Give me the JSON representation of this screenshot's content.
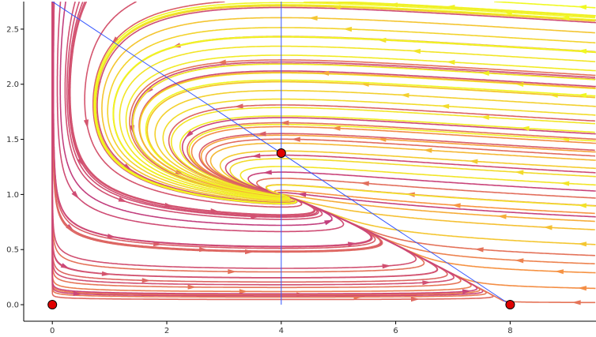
{
  "chart_data": {
    "type": "streamplot",
    "title": "",
    "xlabel": "",
    "ylabel": "",
    "xlim": [
      -0.5,
      9.5
    ],
    "ylim": [
      -0.15,
      2.75
    ],
    "x_ticks": [
      0,
      2,
      4,
      6,
      8
    ],
    "x_tick_labels": [
      "0",
      "2",
      "4",
      "6",
      "8"
    ],
    "y_ticks": [
      0.0,
      0.5,
      1.0,
      1.5,
      2.0,
      2.5
    ],
    "y_tick_labels": [
      "0.0",
      "0.5",
      "1.0",
      "1.5",
      "2.0",
      "2.5"
    ],
    "grid": false,
    "colormap": "plasma",
    "fixed_points": [
      {
        "x": 0,
        "y": 0
      },
      {
        "x": 4,
        "y": 1.375
      },
      {
        "x": 8,
        "y": 0
      }
    ],
    "fixed_point_color": "#e00000",
    "nullclines": [
      {
        "kind": "line",
        "points": [
          [
            0,
            2.75
          ],
          [
            8,
            0
          ]
        ]
      },
      {
        "kind": "vertical",
        "x": 4
      }
    ],
    "nullcline_color": "#3355ff",
    "field": {
      "a": 1.0,
      "K": 8.0,
      "b": 0.25,
      "c": 0.5,
      "d": 0.125
    },
    "seeds": [
      [
        0.2,
        0.35
      ],
      [
        0.9,
        0.28
      ],
      [
        1.6,
        0.22
      ],
      [
        2.4,
        0.16
      ],
      [
        3.3,
        0.12
      ],
      [
        4.3,
        0.09
      ],
      [
        5.3,
        0.07
      ],
      [
        6.3,
        0.05
      ],
      [
        0.3,
        0.7
      ],
      [
        1.0,
        0.62
      ],
      [
        1.8,
        0.55
      ],
      [
        2.6,
        0.5
      ],
      [
        3.4,
        0.48
      ],
      [
        0.4,
        1.0
      ],
      [
        1.2,
        0.95
      ],
      [
        2.0,
        0.9
      ],
      [
        2.8,
        0.85
      ],
      [
        3.5,
        0.8
      ],
      [
        0.5,
        1.3
      ],
      [
        1.3,
        1.25
      ],
      [
        2.2,
        1.2
      ],
      [
        0.6,
        1.65
      ],
      [
        1.4,
        1.6
      ],
      [
        2.4,
        1.55
      ],
      [
        0.8,
        2.0
      ],
      [
        1.7,
        1.95
      ],
      [
        1.1,
        2.4
      ],
      [
        2.2,
        2.35
      ],
      [
        3.0,
        2.2
      ],
      [
        3.3,
        1.8
      ],
      [
        0.4,
        0.1
      ],
      [
        3.1,
        0.3
      ],
      [
        4.6,
        2.6
      ],
      [
        5.2,
        2.5
      ],
      [
        5.8,
        2.4
      ],
      [
        6.4,
        2.3
      ],
      [
        7.0,
        2.2
      ],
      [
        7.6,
        2.1
      ],
      [
        8.2,
        2.0
      ],
      [
        8.8,
        1.9
      ],
      [
        4.8,
        2.1
      ],
      [
        5.5,
        2.0
      ],
      [
        6.2,
        1.9
      ],
      [
        6.9,
        1.8
      ],
      [
        7.6,
        1.7
      ],
      [
        8.3,
        1.6
      ],
      [
        9.0,
        1.5
      ],
      [
        5.0,
        1.6
      ],
      [
        5.8,
        1.5
      ],
      [
        6.6,
        1.4
      ],
      [
        7.4,
        1.3
      ],
      [
        8.2,
        1.2
      ],
      [
        9.0,
        1.1
      ],
      [
        5.5,
        1.1
      ],
      [
        6.3,
        1.0
      ],
      [
        7.1,
        0.9
      ],
      [
        7.9,
        0.8
      ],
      [
        8.7,
        0.7
      ],
      [
        9.3,
        0.55
      ],
      [
        7.5,
        0.5
      ],
      [
        8.2,
        0.4
      ],
      [
        8.9,
        0.3
      ],
      [
        9.3,
        0.15
      ],
      [
        9.2,
        0.02
      ],
      [
        5.0,
        2.7
      ],
      [
        6.0,
        2.72
      ],
      [
        7.0,
        2.7
      ],
      [
        8.0,
        2.65
      ],
      [
        9.0,
        2.6
      ],
      [
        4.4,
        1.0
      ],
      [
        4.8,
        0.75
      ],
      [
        5.2,
        0.55
      ],
      [
        5.8,
        0.35
      ],
      [
        6.5,
        0.2
      ],
      [
        7.2,
        0.12
      ],
      [
        3.6,
        1.35
      ],
      [
        3.8,
        1.2
      ],
      [
        4.3,
        1.5
      ],
      [
        4.1,
        1.65
      ],
      [
        3.7,
        1.55
      ],
      [
        9.3,
        2.7
      ],
      [
        9.3,
        2.3
      ],
      [
        9.3,
        1.9
      ],
      [
        9.3,
        0.9
      ]
    ]
  }
}
